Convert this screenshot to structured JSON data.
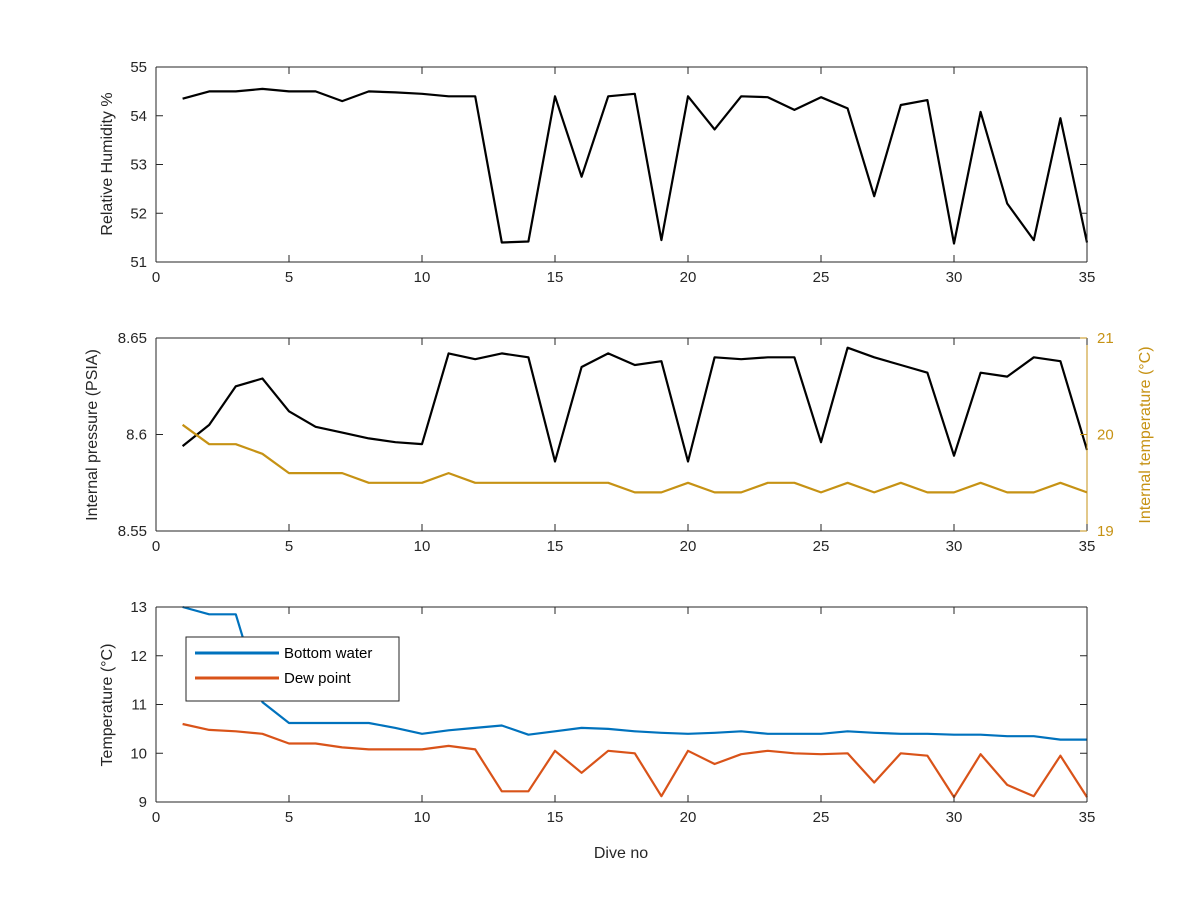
{
  "colors": {
    "black_series": "#000000",
    "internal_temp": "#C69214",
    "bottom_water": "#0072BD",
    "dew_point": "#D95319",
    "axis": "#262626"
  },
  "chart_data": [
    {
      "type": "line",
      "xlabel": "",
      "ylabel": "Relative Humidity %",
      "xlim": [
        0,
        35
      ],
      "ylim": [
        51,
        55
      ],
      "xticks": [
        0,
        5,
        10,
        15,
        20,
        25,
        30,
        35
      ],
      "yticks": [
        51,
        52,
        53,
        54,
        55
      ],
      "grid": false,
      "series": [
        {
          "color": "#000000",
          "x": [
            1,
            2,
            3,
            4,
            5,
            6,
            7,
            8,
            9,
            10,
            11,
            12,
            13,
            14,
            15,
            16,
            17,
            18,
            19,
            20,
            21,
            22,
            23,
            24,
            25,
            26,
            27,
            28,
            29,
            30,
            31,
            32,
            33,
            34,
            35
          ],
          "values": [
            54.35,
            54.5,
            54.5,
            54.55,
            54.5,
            54.5,
            54.3,
            54.5,
            54.48,
            54.45,
            54.4,
            54.4,
            51.4,
            51.42,
            54.4,
            52.75,
            54.4,
            54.45,
            51.45,
            54.4,
            53.72,
            54.4,
            54.38,
            54.12,
            54.38,
            54.15,
            52.35,
            54.22,
            54.32,
            51.38,
            54.08,
            52.2,
            51.45,
            53.95,
            51.4
          ]
        }
      ]
    },
    {
      "type": "line",
      "xlabel": "",
      "ylabel": "Internal pressure (PSIA)",
      "y2label": "Internal temperature (°C)",
      "xlim": [
        0,
        35
      ],
      "ylim": [
        8.55,
        8.65
      ],
      "y2lim": [
        19,
        21
      ],
      "xticks": [
        0,
        5,
        10,
        15,
        20,
        25,
        30,
        35
      ],
      "yticks": [
        8.55,
        8.6,
        8.65
      ],
      "y2ticks": [
        19,
        20,
        21
      ],
      "grid": false,
      "series": [
        {
          "axis": "left",
          "color": "#000000",
          "x": [
            1,
            2,
            3,
            4,
            5,
            6,
            7,
            8,
            9,
            10,
            11,
            12,
            13,
            14,
            15,
            16,
            17,
            18,
            19,
            20,
            21,
            22,
            23,
            24,
            25,
            26,
            27,
            28,
            29,
            30,
            31,
            32,
            33,
            34,
            35
          ],
          "values": [
            8.594,
            8.605,
            8.625,
            8.629,
            8.612,
            8.604,
            8.601,
            8.598,
            8.596,
            8.595,
            8.642,
            8.639,
            8.642,
            8.64,
            8.586,
            8.635,
            8.642,
            8.636,
            8.638,
            8.586,
            8.64,
            8.639,
            8.64,
            8.64,
            8.596,
            8.645,
            8.64,
            8.636,
            8.632,
            8.589,
            8.632,
            8.63,
            8.64,
            8.638,
            8.592
          ]
        },
        {
          "axis": "right",
          "color": "#C69214",
          "x": [
            1,
            2,
            3,
            4,
            5,
            6,
            7,
            8,
            9,
            10,
            11,
            12,
            13,
            14,
            15,
            16,
            17,
            18,
            19,
            20,
            21,
            22,
            23,
            24,
            25,
            26,
            27,
            28,
            29,
            30,
            31,
            32,
            33,
            34,
            35
          ],
          "values": [
            20.1,
            19.9,
            19.9,
            19.8,
            19.6,
            19.6,
            19.6,
            19.5,
            19.5,
            19.5,
            19.6,
            19.5,
            19.5,
            19.5,
            19.5,
            19.5,
            19.5,
            19.4,
            19.4,
            19.5,
            19.4,
            19.4,
            19.5,
            19.5,
            19.4,
            19.5,
            19.4,
            19.5,
            19.4,
            19.4,
            19.5,
            19.4,
            19.4,
            19.5,
            19.4
          ]
        }
      ]
    },
    {
      "type": "line",
      "xlabel": "Dive no",
      "ylabel": "Temperature (°C)",
      "xlim": [
        0,
        35
      ],
      "ylim": [
        9,
        13
      ],
      "xticks": [
        0,
        5,
        10,
        15,
        20,
        25,
        30,
        35
      ],
      "yticks": [
        9,
        10,
        11,
        12,
        13
      ],
      "grid": false,
      "legend": "top-left",
      "series": [
        {
          "name": "Bottom water",
          "color": "#0072BD",
          "x": [
            1,
            2,
            3,
            4,
            5,
            6,
            7,
            8,
            9,
            10,
            11,
            12,
            13,
            14,
            15,
            16,
            17,
            18,
            19,
            20,
            21,
            22,
            23,
            24,
            25,
            26,
            27,
            28,
            29,
            30,
            31,
            32,
            33,
            34,
            35
          ],
          "values": [
            13.0,
            12.85,
            12.85,
            11.05,
            10.62,
            10.62,
            10.62,
            10.62,
            10.52,
            10.4,
            10.47,
            10.52,
            10.57,
            10.38,
            10.45,
            10.52,
            10.5,
            10.45,
            10.42,
            10.4,
            10.42,
            10.45,
            10.4,
            10.4,
            10.4,
            10.45,
            10.42,
            10.4,
            10.4,
            10.38,
            10.38,
            10.35,
            10.35,
            10.28,
            10.28
          ]
        },
        {
          "name": "Dew point",
          "color": "#D95319",
          "x": [
            1,
            2,
            3,
            4,
            5,
            6,
            7,
            8,
            9,
            10,
            11,
            12,
            13,
            14,
            15,
            16,
            17,
            18,
            19,
            20,
            21,
            22,
            23,
            24,
            25,
            26,
            27,
            28,
            29,
            30,
            31,
            32,
            33,
            34,
            35
          ],
          "values": [
            10.6,
            10.48,
            10.45,
            10.4,
            10.2,
            10.2,
            10.12,
            10.08,
            10.08,
            10.08,
            10.15,
            10.08,
            9.22,
            9.22,
            10.05,
            9.6,
            10.05,
            10.0,
            9.12,
            10.05,
            9.78,
            9.98,
            10.05,
            10.0,
            9.98,
            10.0,
            9.4,
            10.0,
            9.95,
            9.1,
            9.98,
            9.35,
            9.12,
            9.95,
            9.1
          ]
        }
      ]
    }
  ]
}
